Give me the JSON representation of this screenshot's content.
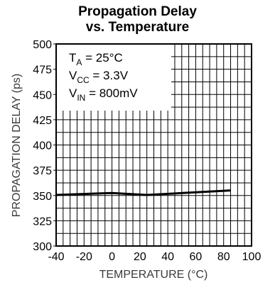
{
  "chart_data": {
    "type": "line",
    "title_line1": "Propagation Delay",
    "title_line2": "vs. Temperature",
    "xlabel": "TEMPERATURE (°C)",
    "ylabel": "PROPAGATION DELAY (ps)",
    "xlim": [
      -40,
      100
    ],
    "ylim": [
      300,
      500
    ],
    "xticks": [
      "-40",
      "-20",
      "0",
      "20",
      "40",
      "60",
      "80",
      "100"
    ],
    "yticks": [
      "300",
      "325",
      "350",
      "375",
      "400",
      "425",
      "450",
      "475",
      "500"
    ],
    "grid": true,
    "series": [
      {
        "x": [
          -40,
          0,
          25,
          85
        ],
        "y": [
          350.5,
          352.5,
          350.5,
          355
        ]
      }
    ],
    "annotations": {
      "ta": {
        "base": "T",
        "sub": "A",
        "rest": " = 25°C"
      },
      "vcc": {
        "base": "V",
        "sub": "CC",
        "rest": " = 3.3V"
      },
      "vin": {
        "base": "V",
        "sub": "IN",
        "rest": " = 800mV"
      }
    }
  }
}
